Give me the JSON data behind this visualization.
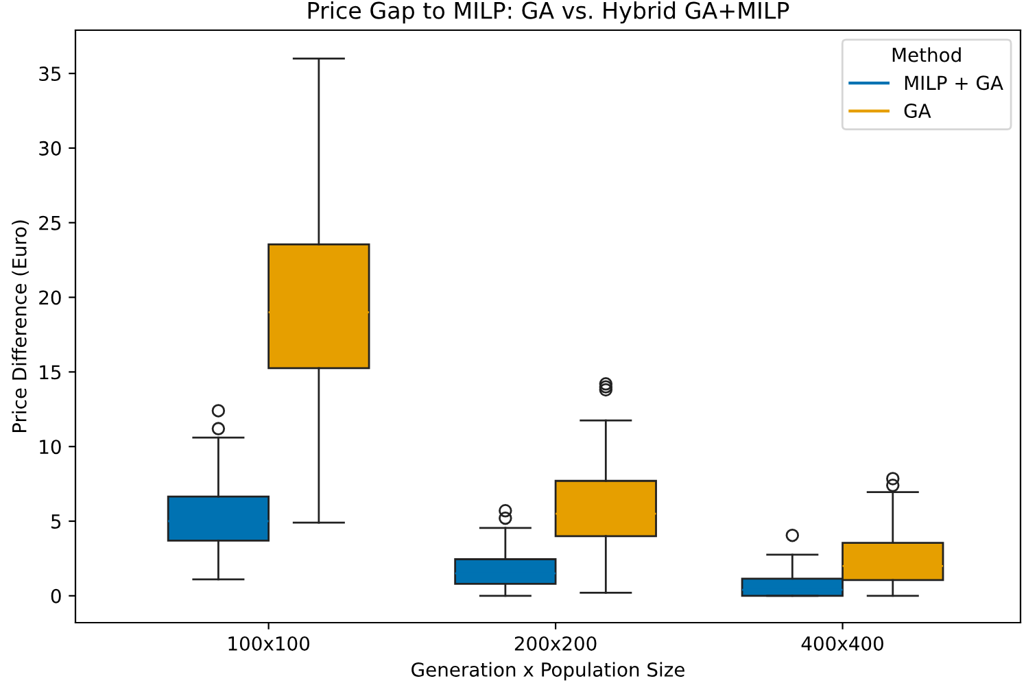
{
  "chart_data": {
    "type": "box",
    "title": "Price Gap to MILP: GA vs. Hybrid GA+MILP",
    "xlabel": "Generation x Population Size",
    "ylabel": "Price Difference (Euro)",
    "legend_title": "Method",
    "legend": "top right",
    "grid": false,
    "categories": [
      "100x100",
      "200x200",
      "400x400"
    ],
    "ylim": [
      -1.8,
      37.9
    ],
    "yticks": [
      0,
      5,
      10,
      15,
      20,
      25,
      30,
      35
    ],
    "series": [
      {
        "name": "MILP + GA",
        "color": "#0072b2",
        "boxes": [
          {
            "low": 1.1,
            "q1": 3.7,
            "median": 5.0,
            "q3": 6.65,
            "high": 10.6,
            "outliers": [
              11.2,
              12.4
            ]
          },
          {
            "low": 0,
            "q1": 0.8,
            "median": 1.5,
            "q3": 2.45,
            "high": 4.55,
            "outliers": [
              5.2,
              5.7
            ]
          },
          {
            "low": 0,
            "q1": 0,
            "median": 0.4,
            "q3": 1.15,
            "high": 2.75,
            "outliers": [
              4.05
            ]
          }
        ]
      },
      {
        "name": "GA",
        "color": "#e69f00",
        "boxes": [
          {
            "low": 4.9,
            "q1": 15.25,
            "median": 19.0,
            "q3": 23.55,
            "high": 36.0
          },
          {
            "low": 0.2,
            "q1": 4.0,
            "median": 5.5,
            "q3": 7.7,
            "high": 11.75,
            "outliers": [
              13.8,
              14.0,
              14.2
            ]
          },
          {
            "low": 0,
            "q1": 1.05,
            "median": 2.0,
            "q3": 3.55,
            "high": 6.95,
            "outliers": [
              7.4,
              7.85
            ]
          }
        ]
      }
    ]
  }
}
